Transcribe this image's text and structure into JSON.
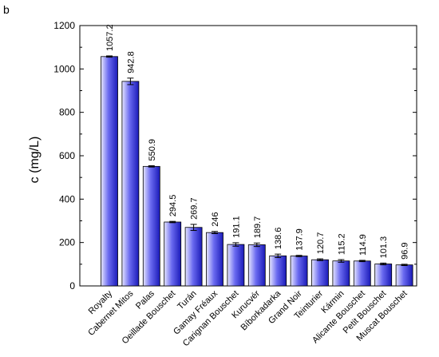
{
  "panel_label": "b",
  "colors": {
    "bar_light": "#e6e6ff",
    "bar_mid": "#6a6af0",
    "bar_dark": "#1a1ab8",
    "bar_outline": "#000000",
    "axis": "#000000"
  },
  "chart_data": {
    "type": "bar",
    "title": "",
    "xlabel": "",
    "ylabel": "c (mg/L)",
    "ylim": [
      0,
      1200
    ],
    "yticks": [
      0,
      200,
      400,
      600,
      800,
      1000,
      1200
    ],
    "grid": false,
    "error_bars": true,
    "categories": [
      "Royalty",
      "Cabernet Mitos",
      "Palas",
      "Oeillade Bouschet",
      "Turán",
      "Gamay Fréaux",
      "Carignan Bouschet",
      "Kurucvér",
      "Bíborkadarka",
      "Grand Noir",
      "Teinturier",
      "Kármin",
      "Alicante Bouschet",
      "Petit Bouschet",
      "Muscat Bouschet"
    ],
    "values": [
      1057.2,
      942.8,
      550.9,
      294.5,
      269.7,
      246,
      191.1,
      189.7,
      138.6,
      137.9,
      120.7,
      115.2,
      114.9,
      101.3,
      96.9
    ],
    "value_labels": [
      "1057.2",
      "942.8",
      "550.9",
      "294.5",
      "269.7",
      "246",
      "191.1",
      "189.7",
      "138.6",
      "137.9",
      "120.7",
      "115.2",
      "114.9",
      "101.3",
      "96.9"
    ],
    "errors": [
      3,
      15,
      3,
      3,
      14,
      5,
      8,
      8,
      8,
      3,
      4,
      6,
      3,
      4,
      3
    ]
  }
}
